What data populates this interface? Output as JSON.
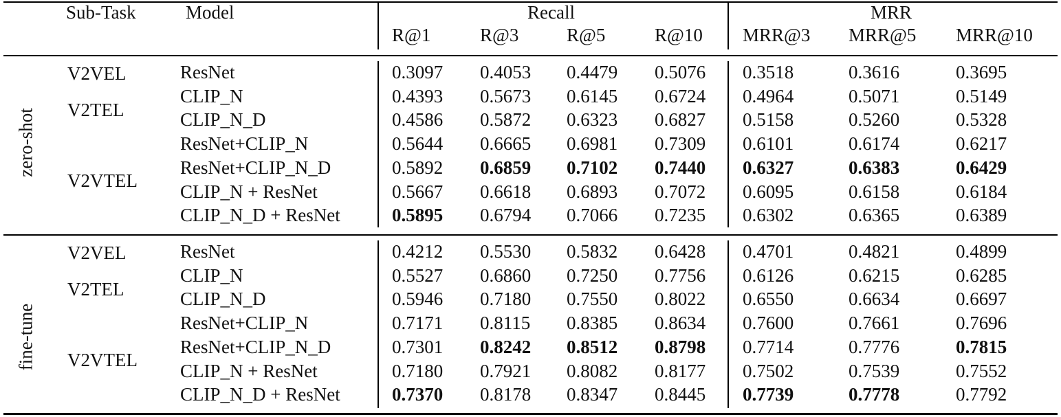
{
  "header": {
    "subtask": "Sub-Task",
    "model": "Model",
    "recall": "Recall",
    "mrr": "MRR",
    "metrics": [
      "R@1",
      "R@3",
      "R@5",
      "R@10",
      "MRR@3",
      "MRR@5",
      "MRR@10"
    ]
  },
  "sections": [
    {
      "label": "zero-shot",
      "subtasks": [
        "V2VEL",
        "V2TEL",
        "V2VTEL"
      ],
      "rows": [
        {
          "model": "ResNet",
          "values": [
            "0.3097",
            "0.4053",
            "0.4479",
            "0.5076",
            "0.3518",
            "0.3616",
            "0.3695"
          ],
          "bold": []
        },
        {
          "model": "CLIP_N",
          "values": [
            "0.4393",
            "0.5673",
            "0.6145",
            "0.6724",
            "0.4964",
            "0.5071",
            "0.5149"
          ],
          "bold": []
        },
        {
          "model": "CLIP_N_D",
          "values": [
            "0.4586",
            "0.5872",
            "0.6323",
            "0.6827",
            "0.5158",
            "0.5260",
            "0.5328"
          ],
          "bold": []
        },
        {
          "model": "ResNet+CLIP_N",
          "values": [
            "0.5644",
            "0.6665",
            "0.6981",
            "0.7309",
            "0.6101",
            "0.6174",
            "0.6217"
          ],
          "bold": []
        },
        {
          "model": "ResNet+CLIP_N_D",
          "values": [
            "0.5892",
            "0.6859",
            "0.7102",
            "0.7440",
            "0.6327",
            "0.6383",
            "0.6429"
          ],
          "bold": [
            1,
            2,
            3,
            4,
            5,
            6
          ]
        },
        {
          "model": "CLIP_N + ResNet",
          "values": [
            "0.5667",
            "0.6618",
            "0.6893",
            "0.7072",
            "0.6095",
            "0.6158",
            "0.6184"
          ],
          "bold": []
        },
        {
          "model": "CLIP_N_D + ResNet",
          "values": [
            "0.5895",
            "0.6794",
            "0.7066",
            "0.7235",
            "0.6302",
            "0.6365",
            "0.6389"
          ],
          "bold": [
            0
          ]
        }
      ]
    },
    {
      "label": "fine-tune",
      "subtasks": [
        "V2VEL",
        "V2TEL",
        "V2VTEL"
      ],
      "rows": [
        {
          "model": "ResNet",
          "values": [
            "0.4212",
            "0.5530",
            "0.5832",
            "0.6428",
            "0.4701",
            "0.4821",
            "0.4899"
          ],
          "bold": []
        },
        {
          "model": "CLIP_N",
          "values": [
            "0.5527",
            "0.6860",
            "0.7250",
            "0.7756",
            "0.6126",
            "0.6215",
            "0.6285"
          ],
          "bold": []
        },
        {
          "model": "CLIP_N_D",
          "values": [
            "0.5946",
            "0.7180",
            "0.7550",
            "0.8022",
            "0.6550",
            "0.6634",
            "0.6697"
          ],
          "bold": []
        },
        {
          "model": "ResNet+CLIP_N",
          "values": [
            "0.7171",
            "0.8115",
            "0.8385",
            "0.8634",
            "0.7600",
            "0.7661",
            "0.7696"
          ],
          "bold": []
        },
        {
          "model": "ResNet+CLIP_N_D",
          "values": [
            "0.7301",
            "0.8242",
            "0.8512",
            "0.8798",
            "0.7714",
            "0.7776",
            "0.7815"
          ],
          "bold": [
            1,
            2,
            3,
            6
          ]
        },
        {
          "model": "CLIP_N + ResNet",
          "values": [
            "0.7180",
            "0.7921",
            "0.8082",
            "0.8177",
            "0.7502",
            "0.7539",
            "0.7552"
          ],
          "bold": []
        },
        {
          "model": "CLIP_N_D + ResNet",
          "values": [
            "0.7370",
            "0.8178",
            "0.8347",
            "0.8445",
            "0.7739",
            "0.7778",
            "0.7792"
          ],
          "bold": [
            0,
            4,
            5
          ]
        }
      ]
    }
  ]
}
